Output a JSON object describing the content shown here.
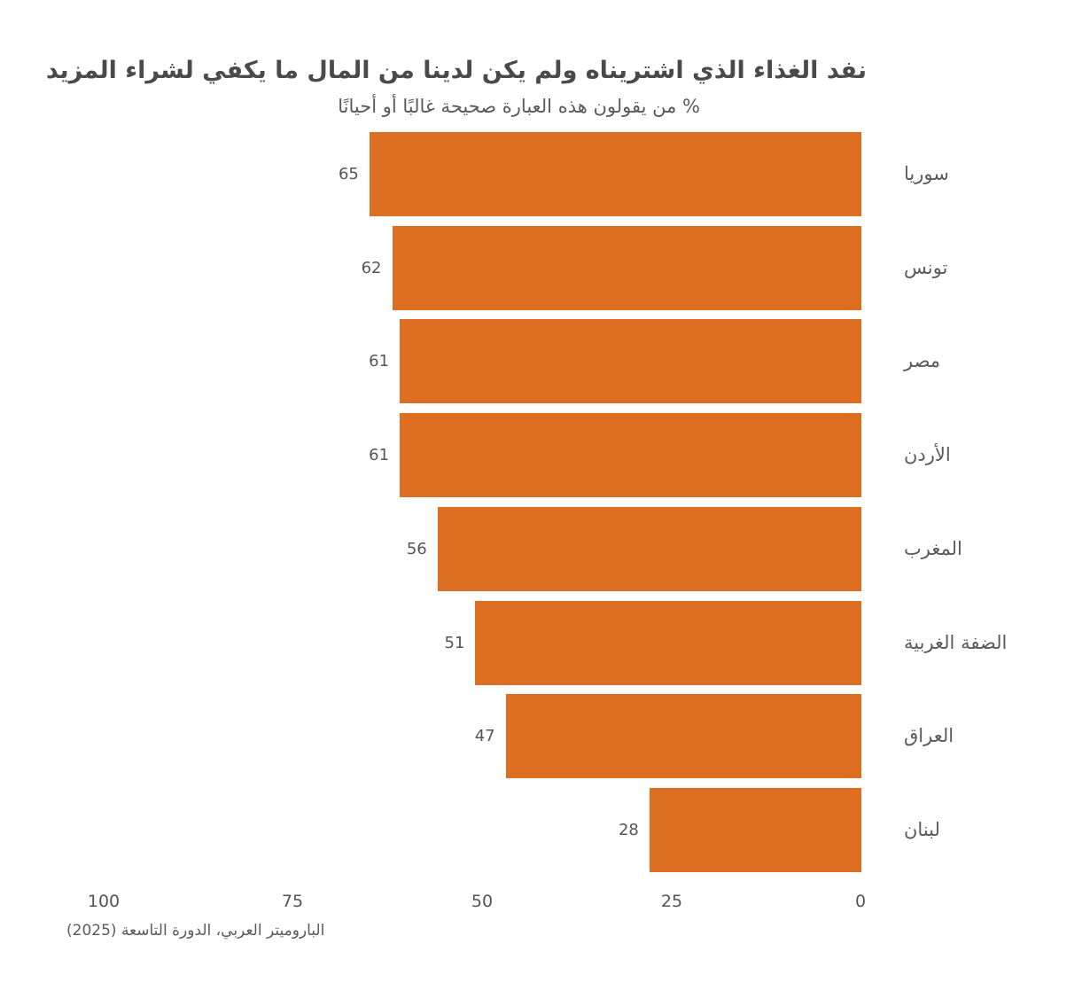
{
  "title": "نفد الغذاء الذي اشتريناه ولم يكن لدينا من المال ما يكفي لشراء المزيد",
  "subtitle": "% من يقولون هذه العبارة صحيحة غالبًا أو أحيانًا",
  "source": "الباروميتر العربي، الدورة التاسعة (2025)",
  "colors": {
    "bar": "#de6e21",
    "text": "#555555"
  },
  "axis": {
    "ticks": [
      "100",
      "75",
      "50",
      "25",
      "0"
    ]
  },
  "chart_data": {
    "type": "bar",
    "orientation": "horizontal",
    "direction": "right-to-left",
    "title": "نفد الغذاء الذي اشتريناه ولم يكن لدينا من المال ما يكفي لشراء المزيد",
    "subtitle": "% من يقولون هذه العبارة صحيحة غالبًا أو أحيانًا",
    "categories": [
      "سوريا",
      "تونس",
      "مصر",
      "الأردن",
      "المغرب",
      "الضفة الغربية",
      "العراق",
      "لبنان"
    ],
    "values": [
      65,
      62,
      61,
      61,
      56,
      51,
      47,
      28
    ],
    "xlabel": "",
    "ylabel": "",
    "xlim": [
      0,
      100
    ],
    "xticks": [
      0,
      25,
      50,
      75,
      100
    ],
    "grid": false,
    "legend": null,
    "data_labels": true,
    "source": "الباروميتر العربي، الدورة التاسعة (2025)"
  }
}
